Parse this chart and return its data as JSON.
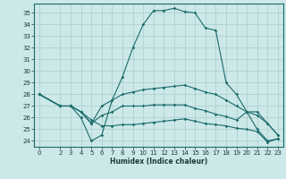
{
  "title": "",
  "xlabel": "Humidex (Indice chaleur)",
  "bg_color": "#cce8e8",
  "grid_color": "#aacccc",
  "line_color": "#1a6b6b",
  "ylim": [
    23.5,
    35.8
  ],
  "xlim": [
    -0.5,
    23.5
  ],
  "yticks": [
    24,
    25,
    26,
    27,
    28,
    29,
    30,
    31,
    32,
    33,
    34,
    35
  ],
  "xticks": [
    0,
    2,
    3,
    4,
    5,
    6,
    7,
    8,
    9,
    10,
    11,
    12,
    13,
    14,
    15,
    16,
    17,
    18,
    19,
    20,
    21,
    22,
    23
  ],
  "lines": [
    {
      "x": [
        0,
        2,
        3,
        4,
        5,
        6,
        7,
        8,
        9,
        10,
        11,
        12,
        13,
        14,
        15,
        16,
        17,
        18,
        19,
        20,
        21,
        22,
        23
      ],
      "y": [
        28,
        27,
        27,
        26,
        24,
        24.5,
        27.5,
        29.5,
        32,
        34,
        35.2,
        35.2,
        35.4,
        35.1,
        35.0,
        33.7,
        33.5,
        29,
        28,
        26.5,
        25,
        24,
        24.2
      ]
    },
    {
      "x": [
        0,
        2,
        3,
        4,
        5,
        6,
        7,
        8,
        9,
        10,
        11,
        12,
        13,
        14,
        15,
        16,
        17,
        18,
        19,
        20,
        21,
        22,
        23
      ],
      "y": [
        28,
        27,
        27,
        26.5,
        25.5,
        27,
        27.5,
        28,
        28.2,
        28.4,
        28.5,
        28.6,
        28.7,
        28.8,
        28.5,
        28.2,
        28.0,
        27.5,
        27.0,
        26.5,
        26.2,
        25.5,
        24.5
      ]
    },
    {
      "x": [
        0,
        2,
        3,
        4,
        5,
        6,
        7,
        8,
        9,
        10,
        11,
        12,
        13,
        14,
        15,
        16,
        17,
        18,
        19,
        20,
        21,
        22,
        23
      ],
      "y": [
        28,
        27,
        27,
        26.5,
        25.5,
        26.2,
        26.5,
        27.0,
        27.0,
        27.0,
        27.1,
        27.1,
        27.1,
        27.1,
        26.8,
        26.6,
        26.3,
        26.1,
        25.8,
        26.5,
        26.5,
        25.5,
        24.5
      ]
    },
    {
      "x": [
        0,
        2,
        3,
        4,
        5,
        6,
        7,
        8,
        9,
        10,
        11,
        12,
        13,
        14,
        15,
        16,
        17,
        18,
        19,
        20,
        21,
        22,
        23
      ],
      "y": [
        28,
        27,
        27,
        26.5,
        25.8,
        25.3,
        25.3,
        25.4,
        25.4,
        25.5,
        25.6,
        25.7,
        25.8,
        25.9,
        25.7,
        25.5,
        25.4,
        25.3,
        25.1,
        25.0,
        24.8,
        23.9,
        24.2
      ]
    }
  ]
}
